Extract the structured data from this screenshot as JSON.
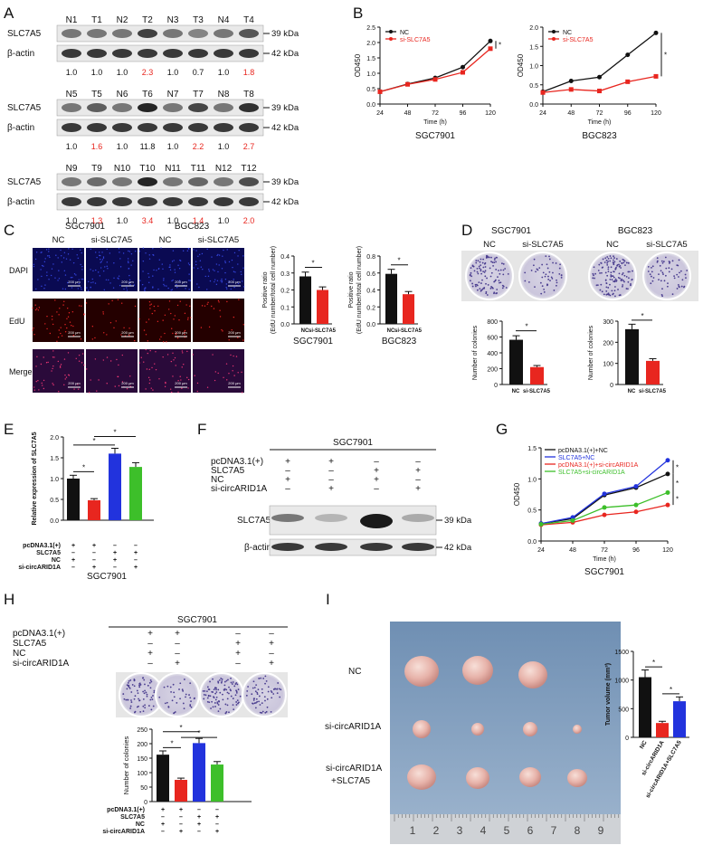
{
  "panels": [
    "A",
    "B",
    "C",
    "D",
    "E",
    "F",
    "G",
    "H",
    "I"
  ],
  "colors": {
    "black": "#111111",
    "red": "#e8261f",
    "blue": "#2233dd",
    "green": "#3dbf2a",
    "gel_bg": "#e9e9e9",
    "band": "#333333"
  },
  "A": {
    "rows": [
      {
        "lanes": [
          "N1",
          "T1",
          "N2",
          "T2",
          "N3",
          "T3",
          "N4",
          "T4"
        ],
        "target": "SLC7A5",
        "loading": "β-actin",
        "kda_target": "39 kDa",
        "kda_loading": "42 kDa",
        "ratios": [
          "1.0",
          "1.0",
          "1.0",
          "2.3",
          "1.0",
          "0.7",
          "1.0",
          "1.8"
        ],
        "red_idx": [
          3,
          7
        ]
      },
      {
        "lanes": [
          "N5",
          "T5",
          "N6",
          "T6",
          "N7",
          "T7",
          "N8",
          "T8"
        ],
        "target": "SLC7A5",
        "loading": "β-actin",
        "kda_target": "39 kDa",
        "kda_loading": "42 kDa",
        "ratios": [
          "1.0",
          "1.6",
          "1.0",
          "11.8",
          "1.0",
          "2.2",
          "1.0",
          "2.7"
        ],
        "red_idx": [
          1,
          5,
          7
        ]
      },
      {
        "lanes": [
          "N9",
          "T9",
          "N10",
          "T10",
          "N11",
          "T11",
          "N12",
          "T12"
        ],
        "target": "SLC7A5",
        "loading": "β-actin",
        "kda_target": "39 kDa",
        "kda_loading": "42 kDa",
        "ratios": [
          "1.0",
          "1.3",
          "1.0",
          "3.4",
          "1.0",
          "1.4",
          "1.0",
          "2.0"
        ],
        "red_idx": [
          1,
          3,
          5,
          7
        ]
      }
    ]
  },
  "B": {
    "charts": [
      {
        "cell": "SGC7901",
        "ylabel": "OD450",
        "xlabel": "Time (h)",
        "x": [
          24,
          48,
          72,
          96,
          120
        ],
        "ylim": [
          0,
          2.5
        ],
        "yticks": [
          "0.0",
          "0.5",
          "1.0",
          "1.5",
          "2.0",
          "2.5"
        ],
        "series": [
          {
            "name": "NC",
            "values": [
              0.4,
              0.65,
              0.85,
              1.2,
              2.05
            ]
          },
          {
            "name": "si-SLC7A5",
            "values": [
              0.4,
              0.64,
              0.8,
              1.03,
              1.8
            ]
          }
        ],
        "star": "*"
      },
      {
        "cell": "BGC823",
        "ylabel": "OD450",
        "xlabel": "Time (h)",
        "x": [
          24,
          48,
          72,
          96,
          120
        ],
        "ylim": [
          0,
          2.0
        ],
        "yticks": [
          "0.0",
          "0.5",
          "1.0",
          "1.5",
          "2.0"
        ],
        "series": [
          {
            "name": "NC",
            "values": [
              0.32,
              0.6,
              0.7,
              1.28,
              1.85
            ]
          },
          {
            "name": "si-SLC7A5",
            "values": [
              0.3,
              0.38,
              0.34,
              0.58,
              0.72
            ]
          }
        ],
        "star": "*"
      }
    ]
  },
  "C": {
    "cells": [
      "SGC7901",
      "BGC823"
    ],
    "groups": [
      "NC",
      "si-SLC7A5",
      "NC",
      "si-SLC7A5"
    ],
    "rows": [
      "DAPI",
      "EdU",
      "Merge"
    ],
    "scale": "200 μm",
    "charts": [
      {
        "cell": "SGC7901",
        "ylabel": "Positive ratio",
        "ylabel2": "(EdU number/total cell number)",
        "categories": [
          "NC",
          "si-SLC7A5"
        ],
        "values": [
          0.28,
          0.2
        ],
        "ylim": [
          0,
          0.4
        ],
        "yticks": [
          "0.0",
          "0.1",
          "0.2",
          "0.3",
          "0.4"
        ],
        "star": "*"
      },
      {
        "cell": "BGC823",
        "ylabel": "Positive ratio",
        "ylabel2": "(EdU number/total cell number)",
        "categories": [
          "NC",
          "si-SLC7A5"
        ],
        "values": [
          0.59,
          0.35
        ],
        "ylim": [
          0,
          0.8
        ],
        "yticks": [
          "0.0",
          "0.2",
          "0.4",
          "0.6",
          "0.8"
        ],
        "star": "*"
      }
    ]
  },
  "D": {
    "cells": [
      "SGC7901",
      "BGC823"
    ],
    "groups": [
      "NC",
      "si-SLC7A5",
      "NC",
      "si-SLC7A5"
    ],
    "charts": [
      {
        "ylabel": "Number of colonies",
        "categories": [
          "NC",
          "si-SLC7A5"
        ],
        "values": [
          565,
          220
        ],
        "ylim": [
          0,
          800
        ],
        "yticks": [
          "0",
          "200",
          "400",
          "600",
          "800"
        ],
        "star": "*"
      },
      {
        "ylabel": "Number of colonies",
        "categories": [
          "NC",
          "si-SLC7A5"
        ],
        "values": [
          262,
          112
        ],
        "ylim": [
          0,
          300
        ],
        "yticks": [
          "0",
          "100",
          "200",
          "300"
        ],
        "star": "*"
      }
    ]
  },
  "E": {
    "ylabel": "Relative expression of SLC7A5",
    "ylim": [
      0,
      2.0
    ],
    "yticks": [
      "0.0",
      "0.5",
      "1.0",
      "1.5",
      "2.0"
    ],
    "values": [
      1.0,
      0.48,
      1.6,
      1.28
    ],
    "conditions": [
      "pcDNA3.1(+)",
      "SLC7A5",
      "NC",
      "si-circARID1A"
    ],
    "signs": [
      [
        "+",
        "+",
        "–",
        "–"
      ],
      [
        "–",
        "–",
        "+",
        "+"
      ],
      [
        "+",
        "–",
        "+",
        "–"
      ],
      [
        "–",
        "+",
        "–",
        "+"
      ]
    ],
    "cell": "SGC7901",
    "star": "*"
  },
  "F": {
    "cell": "SGC7901",
    "conditions": [
      "pcDNA3.1(+)",
      "SLC7A5",
      "NC",
      "si-circARID1A"
    ],
    "signs": [
      [
        "+",
        "+",
        "–",
        "–"
      ],
      [
        "–",
        "–",
        "+",
        "+"
      ],
      [
        "+",
        "–",
        "+",
        "–"
      ],
      [
        "–",
        "+",
        "–",
        "+"
      ]
    ],
    "target": "SLC7A5",
    "loading": "β-actin",
    "kda_target": "39 kDa",
    "kda_loading": "42 kDa"
  },
  "G": {
    "ylabel": "OD450",
    "xlabel": "Time (h)",
    "cell": "SGC7901",
    "x": [
      24,
      48,
      72,
      96,
      120
    ],
    "ylim": [
      0,
      1.5
    ],
    "yticks": [
      "0.0",
      "0.5",
      "1.0",
      "1.5"
    ],
    "series": [
      {
        "name": "pcDNA3.1(+)+NC",
        "values": [
          0.28,
          0.36,
          0.74,
          0.86,
          1.08
        ]
      },
      {
        "name": "SLC7A5+NC",
        "values": [
          0.28,
          0.38,
          0.76,
          0.88,
          1.3
        ]
      },
      {
        "name": "pcDNA3.1(+)+si-circARID1A",
        "values": [
          0.26,
          0.3,
          0.42,
          0.47,
          0.58
        ]
      },
      {
        "name": "SLC7A5+si-circARID1A",
        "values": [
          0.27,
          0.33,
          0.54,
          0.58,
          0.78
        ]
      }
    ],
    "star": "*"
  },
  "H": {
    "cell": "SGC7901",
    "conditions": [
      "pcDNA3.1(+)",
      "SLC7A5",
      "NC",
      "si-circARID1A"
    ],
    "signs": [
      [
        "+",
        "+",
        "–",
        "–"
      ],
      [
        "–",
        "–",
        "+",
        "+"
      ],
      [
        "+",
        "–",
        "+",
        "–"
      ],
      [
        "–",
        "+",
        "–",
        "+"
      ]
    ],
    "ylabel": "Number of colonies",
    "ylim": [
      0,
      250
    ],
    "yticks": [
      "0",
      "50",
      "100",
      "150",
      "200",
      "250"
    ],
    "values": [
      162,
      75,
      202,
      128
    ],
    "star": "*"
  },
  "I": {
    "rows": [
      "NC",
      "si-circARID1A",
      "si-circARID1A",
      "+SLC7A5"
    ],
    "ruler": [
      "1",
      "2",
      "3",
      "4",
      "5",
      "6",
      "7",
      "8",
      "9"
    ],
    "ylabel": "Tumor volume (mm³)",
    "ylim": [
      0,
      1500
    ],
    "yticks": [
      "0",
      "500",
      "1000",
      "1500"
    ],
    "categories": [
      "NC",
      "si-circARID1A",
      "si-circARID1A+SLC7A5"
    ],
    "values": [
      1050,
      250,
      630
    ],
    "star": "*"
  }
}
